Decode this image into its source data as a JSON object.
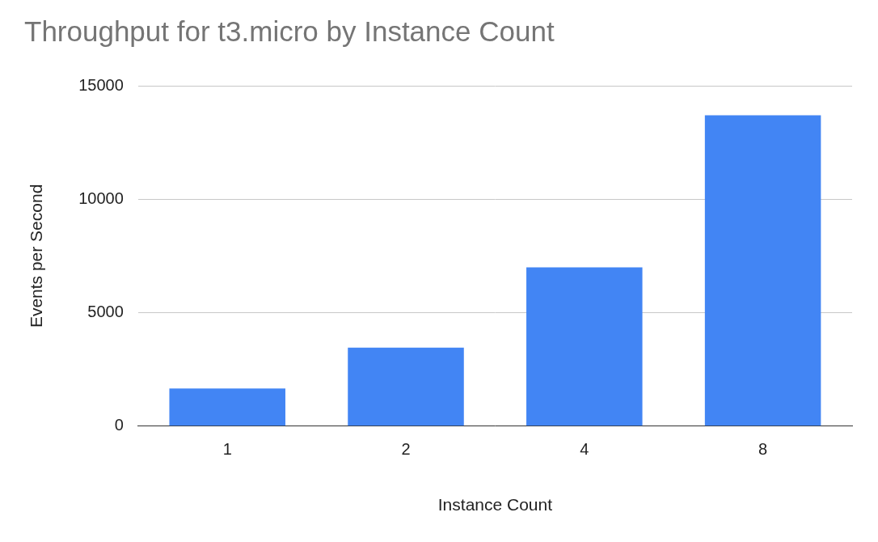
{
  "chart_data": {
    "type": "bar",
    "title": "Throughput for t3.micro by Instance Count",
    "x_label": "Instance Count",
    "y_label": "Events per Second",
    "categories": [
      "1",
      "2",
      "4",
      "8"
    ],
    "values": [
      1660,
      3460,
      7000,
      13700
    ],
    "color": "#4285f4",
    "ylim": [
      0,
      15000
    ],
    "yticks": [
      0,
      5000,
      10000,
      15000
    ],
    "grid": true
  }
}
